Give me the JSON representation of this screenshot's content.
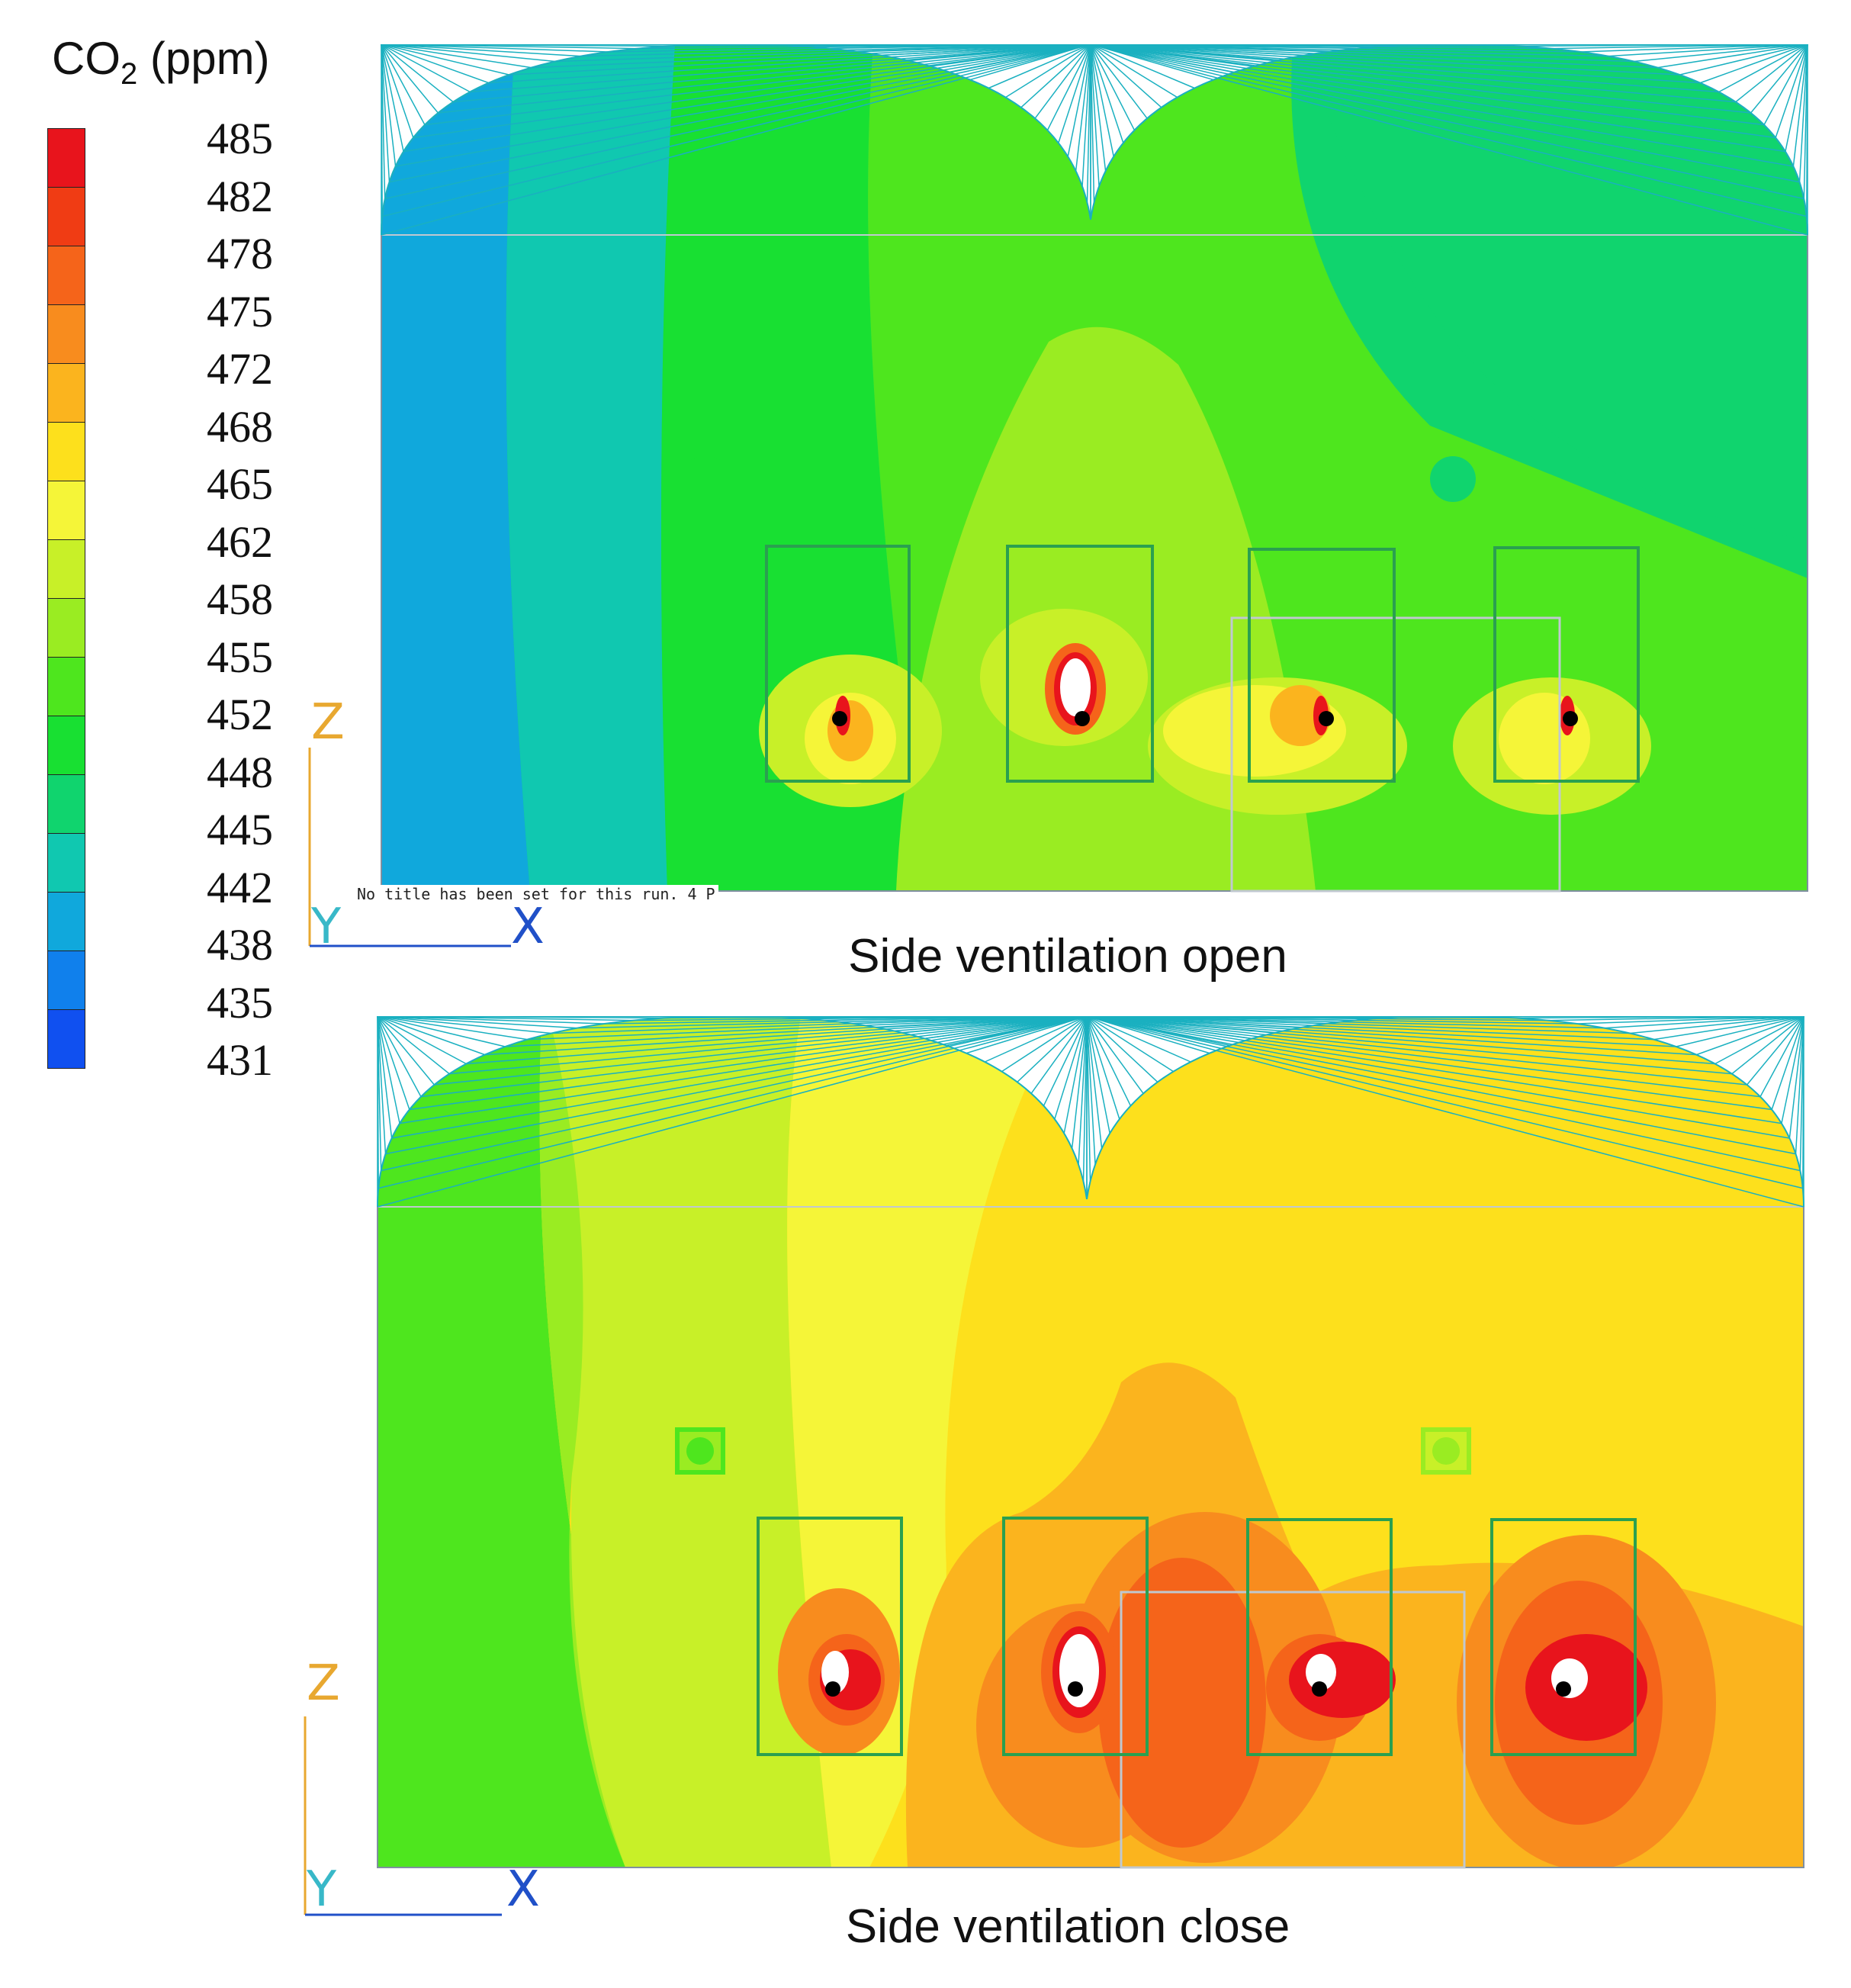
{
  "legend": {
    "title_main": "CO",
    "title_sub": "2",
    "title_unit": " (ppm)",
    "ticks": [
      "485",
      "482",
      "478",
      "475",
      "472",
      "468",
      "465",
      "462",
      "458",
      "455",
      "452",
      "448",
      "445",
      "442",
      "438",
      "435",
      "431"
    ],
    "colors": [
      "#e8141c",
      "#f03c14",
      "#f5641a",
      "#f88c1e",
      "#fbb41e",
      "#fde01c",
      "#f5f538",
      "#c8f028",
      "#9aec22",
      "#4ee61e",
      "#18e032",
      "#10d46e",
      "#10c8b0",
      "#10a8dc",
      "#1080ec",
      "#1050f0",
      "#1820e0"
    ]
  },
  "panels": [
    {
      "caption": "Side ventilation open",
      "run_title": "No title has been set for this run.  4 P",
      "axes": {
        "z": "Z",
        "y": "Y",
        "x": "X"
      }
    },
    {
      "caption": "Side ventilation close",
      "axes": {
        "z": "Z",
        "y": "Y",
        "x": "X"
      }
    }
  ],
  "colors": {
    "box_outline": "#2aa050",
    "roof_lines": "#1ab0c0",
    "axis_z": "#e8a830",
    "axis_y": "#38b8c8",
    "axis_x": "#2050c8"
  }
}
